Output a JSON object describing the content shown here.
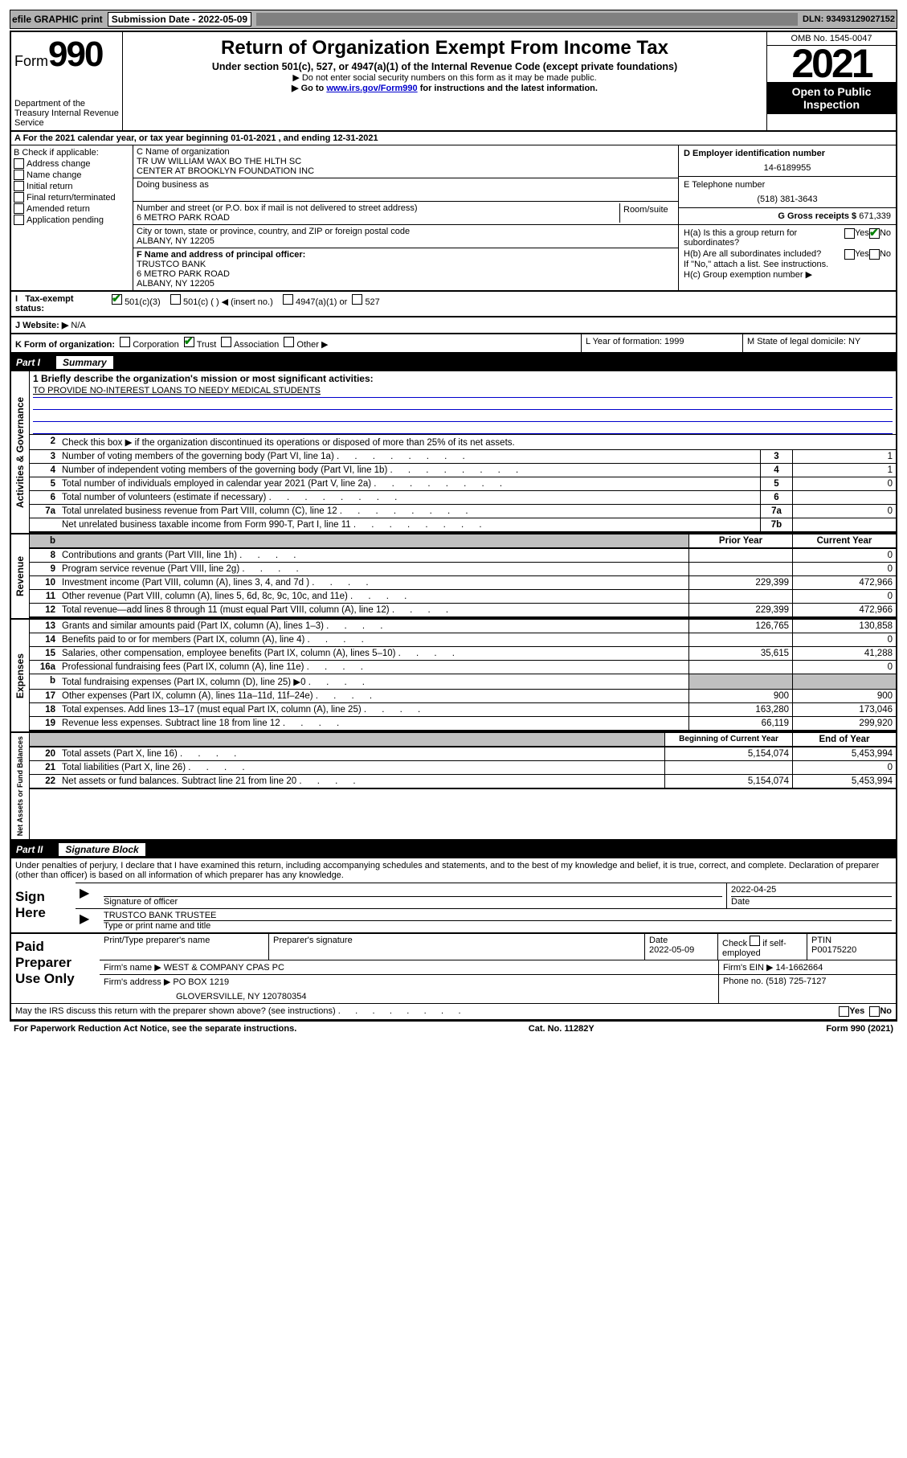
{
  "topbar": {
    "efile": "efile GRAPHIC print",
    "submission": "Submission Date - 2022-05-09",
    "dln": "DLN: 93493129027152"
  },
  "header": {
    "form": "Form",
    "num": "990",
    "dept": "Department of the Treasury\nInternal Revenue Service",
    "title": "Return of Organization Exempt From Income Tax",
    "sub": "Under section 501(c), 527, or 4947(a)(1) of the Internal Revenue Code (except private foundations)",
    "line1": "▶ Do not enter social security numbers on this form as it may be made public.",
    "line2_pre": "▶ Go to ",
    "line2_link": "www.irs.gov/Form990",
    "line2_post": " for instructions and the latest information.",
    "omb": "OMB No. 1545-0047",
    "year": "2021",
    "open": "Open to Public Inspection"
  },
  "rowA": "A For the 2021 calendar year, or tax year beginning 01-01-2021   , and ending 12-31-2021",
  "colB": {
    "title": "B Check if applicable:",
    "items": [
      "Address change",
      "Name change",
      "Initial return",
      "Final return/terminated",
      "Amended return",
      "Application pending"
    ]
  },
  "colC": {
    "nameLabel": "C Name of organization",
    "name1": "TR UW WILLIAM WAX BO THE HLTH SC",
    "name2": "CENTER AT BROOKLYN FOUNDATION INC",
    "dba": "Doing business as",
    "streetLabel": "Number and street (or P.O. box if mail is not delivered to street address)",
    "street": "6 METRO PARK ROAD",
    "room": "Room/suite",
    "cityLabel": "City or town, state or province, country, and ZIP or foreign postal code",
    "city": "ALBANY, NY  12205",
    "officerLabel": "F Name and address of principal officer:",
    "officer1": "TRUSTCO BANK",
    "officer2": "6 METRO PARK ROAD",
    "officer3": "ALBANY, NY  12205"
  },
  "colD": {
    "einLabel": "D Employer identification number",
    "ein": "14-6189955",
    "phoneLabel": "E Telephone number",
    "phone": "(518) 381-3643",
    "grossLabel": "G Gross receipts $",
    "gross": "671,339",
    "ha": "H(a)  Is this a group return for subordinates?",
    "hb": "H(b)  Are all subordinates included?",
    "hbnote": "If \"No,\" attach a list. See instructions.",
    "hc": "H(c)  Group exemption number ▶",
    "yes": "Yes",
    "no": "No"
  },
  "taxStatus": {
    "label": "Tax-exempt status:",
    "opts": [
      "501(c)(3)",
      "501(c) (    ) ◀ (insert no.)",
      "4947(a)(1) or",
      "527"
    ]
  },
  "website": {
    "label": "J   Website: ▶",
    "val": "N/A"
  },
  "rowK": {
    "label": "K Form of organization:",
    "opts": [
      "Corporation",
      "Trust",
      "Association",
      "Other ▶"
    ],
    "year": "L Year of formation: 1999",
    "state": "M State of legal domicile: NY"
  },
  "part1": {
    "pt": "Part I",
    "ttl": "Summary"
  },
  "summary": {
    "side1": "Activities & Governance",
    "l1a": "1   Briefly describe the organization's mission or most significant activities:",
    "l1b": "TO PROVIDE NO-INTEREST LOANS TO NEEDY MEDICAL STUDENTS",
    "l2": "Check this box ▶        if the organization discontinued its operations or disposed of more than 25% of its net assets.",
    "rows_gov": [
      {
        "n": "3",
        "t": "Number of voting members of the governing body (Part VI, line 1a)",
        "c": "3",
        "v": "1"
      },
      {
        "n": "4",
        "t": "Number of independent voting members of the governing body (Part VI, line 1b)",
        "c": "4",
        "v": "1"
      },
      {
        "n": "5",
        "t": "Total number of individuals employed in calendar year 2021 (Part V, line 2a)",
        "c": "5",
        "v": "0"
      },
      {
        "n": "6",
        "t": "Total number of volunteers (estimate if necessary)",
        "c": "6",
        "v": ""
      },
      {
        "n": "7a",
        "t": "Total unrelated business revenue from Part VIII, column (C), line 12",
        "c": "7a",
        "v": "0"
      },
      {
        "n": "",
        "t": "Net unrelated business taxable income from Form 990-T, Part I, line 11",
        "c": "7b",
        "v": ""
      }
    ],
    "hdr_prior": "Prior Year",
    "hdr_current": "Current Year",
    "side2": "Revenue",
    "rows_rev": [
      {
        "n": "8",
        "t": "Contributions and grants (Part VIII, line 1h)",
        "p": "",
        "c": "0"
      },
      {
        "n": "9",
        "t": "Program service revenue (Part VIII, line 2g)",
        "p": "",
        "c": "0"
      },
      {
        "n": "10",
        "t": "Investment income (Part VIII, column (A), lines 3, 4, and 7d )",
        "p": "229,399",
        "c": "472,966"
      },
      {
        "n": "11",
        "t": "Other revenue (Part VIII, column (A), lines 5, 6d, 8c, 9c, 10c, and 11e)",
        "p": "",
        "c": "0"
      },
      {
        "n": "12",
        "t": "Total revenue—add lines 8 through 11 (must equal Part VIII, column (A), line 12)",
        "p": "229,399",
        "c": "472,966"
      }
    ],
    "side3": "Expenses",
    "rows_exp": [
      {
        "n": "13",
        "t": "Grants and similar amounts paid (Part IX, column (A), lines 1–3)",
        "p": "126,765",
        "c": "130,858"
      },
      {
        "n": "14",
        "t": "Benefits paid to or for members (Part IX, column (A), line 4)",
        "p": "",
        "c": "0"
      },
      {
        "n": "15",
        "t": "Salaries, other compensation, employee benefits (Part IX, column (A), lines 5–10)",
        "p": "35,615",
        "c": "41,288"
      },
      {
        "n": "16a",
        "t": "Professional fundraising fees (Part IX, column (A), line 11e)",
        "p": "",
        "c": "0"
      },
      {
        "n": "b",
        "t": "Total fundraising expenses (Part IX, column (D), line 25) ▶0",
        "p": "shaded",
        "c": "shaded"
      },
      {
        "n": "17",
        "t": "Other expenses (Part IX, column (A), lines 11a–11d, 11f–24e)",
        "p": "900",
        "c": "900"
      },
      {
        "n": "18",
        "t": "Total expenses. Add lines 13–17 (must equal Part IX, column (A), line 25)",
        "p": "163,280",
        "c": "173,046"
      },
      {
        "n": "19",
        "t": "Revenue less expenses. Subtract line 18 from line 12",
        "p": "66,119",
        "c": "299,920"
      }
    ],
    "hdr_beg": "Beginning of Current Year",
    "hdr_end": "End of Year",
    "side4": "Net Assets or Fund Balances",
    "rows_net": [
      {
        "n": "20",
        "t": "Total assets (Part X, line 16)",
        "p": "5,154,074",
        "c": "5,453,994"
      },
      {
        "n": "21",
        "t": "Total liabilities (Part X, line 26)",
        "p": "",
        "c": "0"
      },
      {
        "n": "22",
        "t": "Net assets or fund balances. Subtract line 21 from line 20",
        "p": "5,154,074",
        "c": "5,453,994"
      }
    ]
  },
  "part2": {
    "pt": "Part II",
    "ttl": "Signature Block"
  },
  "sig": {
    "decl": "Under penalties of perjury, I declare that I have examined this return, including accompanying schedules and statements, and to the best of my knowledge and belief, it is true, correct, and complete. Declaration of preparer (other than officer) is based on all information of which preparer has any knowledge.",
    "here": "Sign Here",
    "sigoff": "Signature of officer",
    "date": "Date",
    "dateval": "2022-04-25",
    "name": "TRUSTCO BANK TRUSTEE",
    "nameLabel": "Type or print name and title"
  },
  "paid": {
    "title": "Paid Preparer Use Only",
    "h1": "Print/Type preparer's name",
    "h2": "Preparer's signature",
    "h3": "Date",
    "h3v": "2022-05-09",
    "h4a": "Check",
    "h4b": "if self-employed",
    "h5": "PTIN",
    "h5v": "P00175220",
    "firmname": "Firm's name    ▶ WEST & COMPANY CPAS PC",
    "firmein": "Firm's EIN ▶ 14-1662664",
    "firmaddr": "Firm's address ▶ PO BOX 1219",
    "firmaddr2": "GLOVERSVILLE, NY  120780354",
    "firmphone": "Phone no. (518) 725-7127",
    "may": "May the IRS discuss this return with the preparer shown above? (see instructions)"
  },
  "footer": {
    "l": "For Paperwork Reduction Act Notice, see the separate instructions.",
    "c": "Cat. No. 11282Y",
    "r": "Form 990 (2021)"
  }
}
